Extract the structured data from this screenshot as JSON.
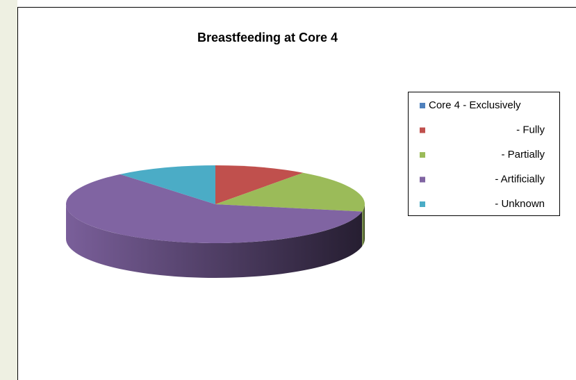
{
  "chart_data": {
    "type": "pie",
    "title": "Breastfeeding at Core 4",
    "categories": [
      "Core 4 - Exclusively",
      "- Fully",
      "- Partially",
      "- Artificially",
      "- Unknown"
    ],
    "values": [
      0,
      10,
      18,
      61,
      11
    ],
    "colors": [
      "#4f81bd",
      "#c0504d",
      "#9bbb59",
      "#8064a2",
      "#4bacc6"
    ],
    "legend": "right"
  }
}
